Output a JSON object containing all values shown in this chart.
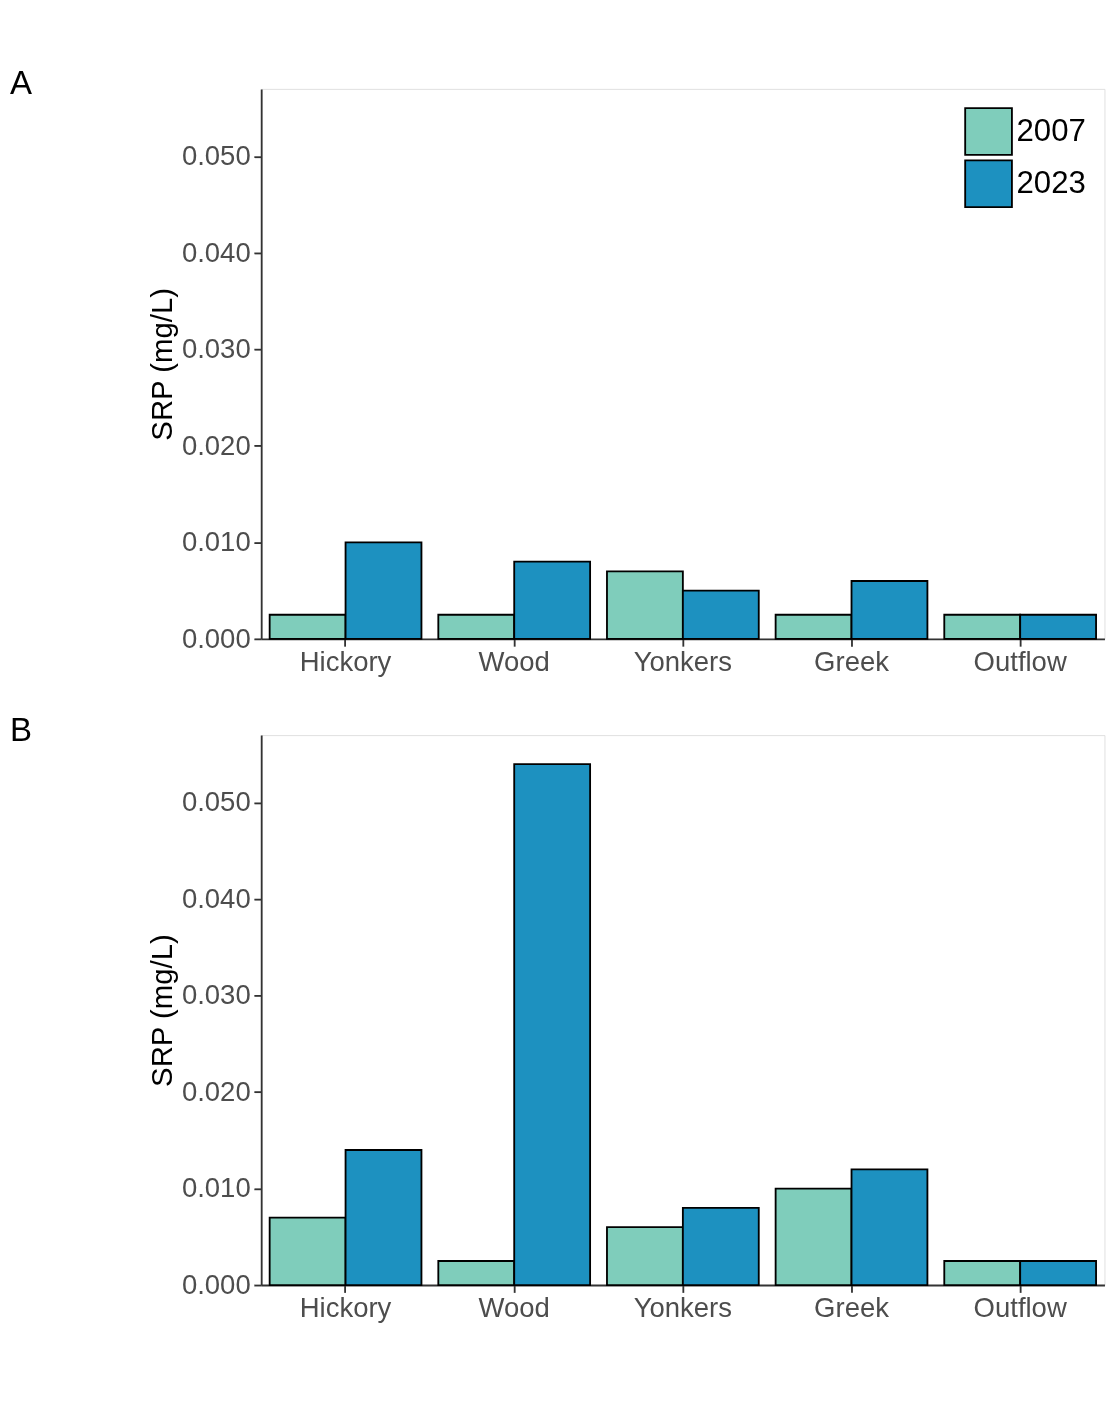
{
  "chart_data": [
    {
      "type": "bar",
      "title": "A",
      "ylabel": "SRP (mg/L)",
      "categories": [
        "Hickory",
        "Wood",
        "Yonkers",
        "Greek",
        "Outflow"
      ],
      "series": [
        {
          "name": "2007",
          "color": "#7fcdbb",
          "values": [
            0.0025,
            0.0025,
            0.007,
            0.0025,
            0.0025
          ]
        },
        {
          "name": "2023",
          "color": "#1d91c0",
          "values": [
            0.01,
            0.008,
            0.005,
            0.006,
            0.0025
          ]
        }
      ],
      "ylim": [
        0,
        0.057
      ],
      "yticks": [
        {
          "value": 0,
          "label": "0.000"
        },
        {
          "value": 0.01,
          "label": "0.010"
        },
        {
          "value": 0.02,
          "label": "0.020"
        },
        {
          "value": 0.03,
          "label": "0.030"
        },
        {
          "value": 0.04,
          "label": "0.040"
        },
        {
          "value": 0.05,
          "label": "0.050"
        }
      ],
      "legend": "top right",
      "grid": false
    },
    {
      "type": "bar",
      "title": "B",
      "ylabel": "SRP (mg/L)",
      "categories": [
        "Hickory",
        "Wood",
        "Yonkers",
        "Greek",
        "Outflow"
      ],
      "series": [
        {
          "name": "2007",
          "color": "#7fcdbb",
          "values": [
            0.007,
            0.0025,
            0.006,
            0.01,
            0.0025
          ]
        },
        {
          "name": "2023",
          "color": "#1d91c0",
          "values": [
            0.014,
            0.054,
            0.008,
            0.012,
            0.0025
          ]
        }
      ],
      "ylim": [
        0,
        0.057
      ],
      "yticks": [
        {
          "value": 0,
          "label": "0.000"
        },
        {
          "value": 0.01,
          "label": "0.010"
        },
        {
          "value": 0.02,
          "label": "0.020"
        },
        {
          "value": 0.03,
          "label": "0.030"
        },
        {
          "value": 0.04,
          "label": "0.040"
        },
        {
          "value": 0.05,
          "label": "0.050"
        }
      ],
      "legend": "top right",
      "grid": false
    }
  ]
}
